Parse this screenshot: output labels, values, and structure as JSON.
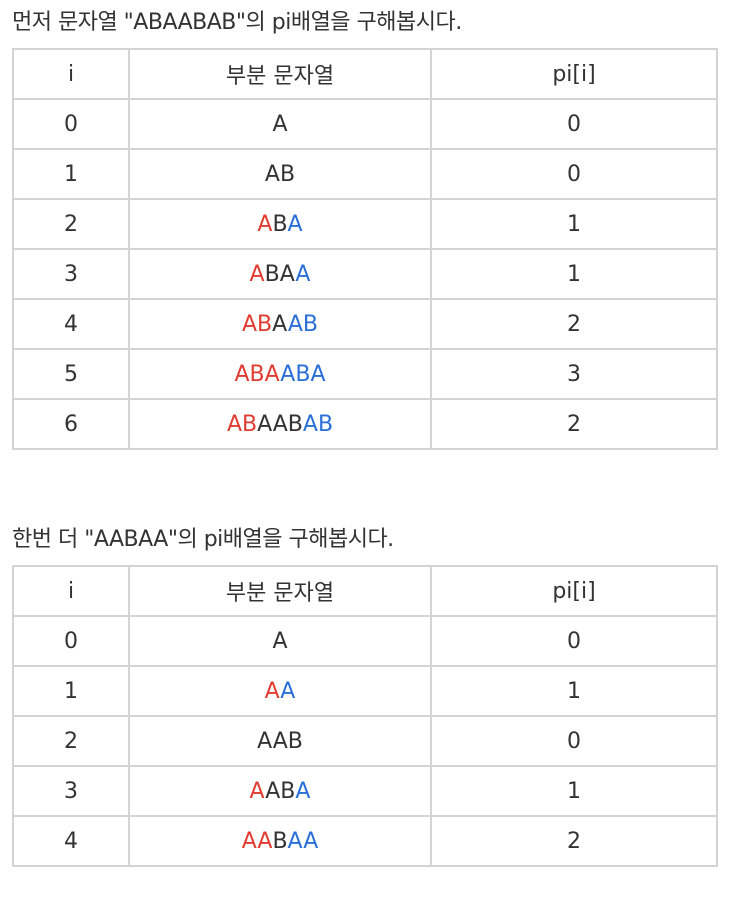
{
  "section1": {
    "heading": "먼저 문자열 \"ABAABAB\"의 pi배열을 구해봅시다.",
    "headers": [
      "i",
      "부분 문자열",
      "pi[i]"
    ],
    "rows": [
      {
        "i": "0",
        "segments": [
          {
            "text": "A",
            "color": "plain"
          }
        ],
        "pi": "0"
      },
      {
        "i": "1",
        "segments": [
          {
            "text": "AB",
            "color": "plain"
          }
        ],
        "pi": "0"
      },
      {
        "i": "2",
        "segments": [
          {
            "text": "A",
            "color": "red"
          },
          {
            "text": "B",
            "color": "plain"
          },
          {
            "text": "A",
            "color": "blue"
          }
        ],
        "pi": "1"
      },
      {
        "i": "3",
        "segments": [
          {
            "text": "A",
            "color": "red"
          },
          {
            "text": "BA",
            "color": "plain"
          },
          {
            "text": "A",
            "color": "blue"
          }
        ],
        "pi": "1"
      },
      {
        "i": "4",
        "segments": [
          {
            "text": "AB",
            "color": "red"
          },
          {
            "text": "A",
            "color": "plain"
          },
          {
            "text": "AB",
            "color": "blue"
          }
        ],
        "pi": "2"
      },
      {
        "i": "5",
        "segments": [
          {
            "text": "ABA",
            "color": "red"
          },
          {
            "text": "ABA",
            "color": "blue"
          }
        ],
        "pi": "3"
      },
      {
        "i": "6",
        "segments": [
          {
            "text": "AB",
            "color": "red"
          },
          {
            "text": "AAB",
            "color": "plain"
          },
          {
            "text": "AB",
            "color": "blue"
          }
        ],
        "pi": "2"
      }
    ]
  },
  "section2": {
    "heading": "한번 더 \"AABAA\"의 pi배열을 구해봅시다.",
    "headers": [
      "i",
      "부분 문자열",
      "pi[i]"
    ],
    "rows": [
      {
        "i": "0",
        "segments": [
          {
            "text": "A",
            "color": "plain"
          }
        ],
        "pi": "0"
      },
      {
        "i": "1",
        "segments": [
          {
            "text": "A",
            "color": "red"
          },
          {
            "text": "A",
            "color": "blue"
          }
        ],
        "pi": "1"
      },
      {
        "i": "2",
        "segments": [
          {
            "text": "AAB",
            "color": "plain"
          }
        ],
        "pi": "0"
      },
      {
        "i": "3",
        "segments": [
          {
            "text": "A",
            "color": "red"
          },
          {
            "text": "AB",
            "color": "plain"
          },
          {
            "text": "A",
            "color": "blue"
          }
        ],
        "pi": "1"
      },
      {
        "i": "4",
        "segments": [
          {
            "text": "AA",
            "color": "red"
          },
          {
            "text": "B",
            "color": "plain"
          },
          {
            "text": "AA",
            "color": "blue"
          }
        ],
        "pi": "2"
      }
    ]
  },
  "colors": {
    "prefix_highlight": "#e03c31",
    "suffix_highlight": "#2a6fd8",
    "text": "#333333",
    "border": "#d4d4d4"
  }
}
